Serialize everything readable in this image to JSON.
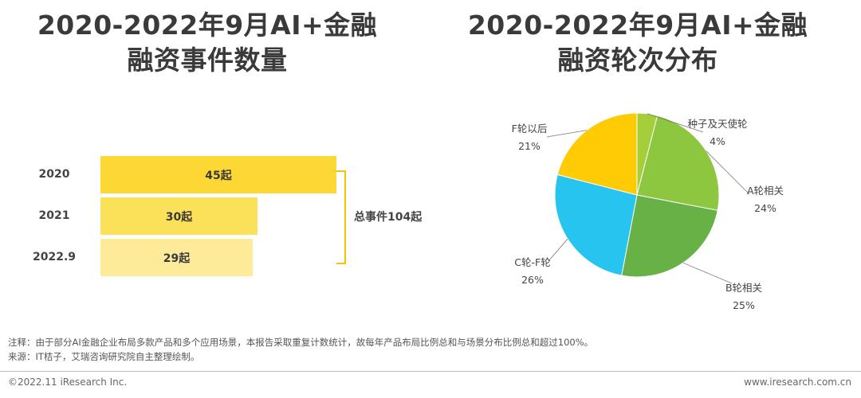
{
  "left_chart": {
    "title_line1": "2020-2022年9月AI+金融",
    "title_line2": "融资事件数量",
    "total_label": "总事件104起"
  },
  "right_chart": {
    "title_line1": "2020-2022年9月AI+金融",
    "title_line2": "融资轮次分布"
  },
  "chart_data": [
    {
      "type": "bar",
      "orientation": "horizontal",
      "title": "2020-2022年9月AI+金融融资事件数量",
      "categories": [
        "2020",
        "2021",
        "2022.9"
      ],
      "values": [
        45,
        30,
        29
      ],
      "value_labels": [
        "45起",
        "30起",
        "29起"
      ],
      "colors": [
        "#fdd835",
        "#fbe05a",
        "#fdeb99"
      ],
      "annotation": "总事件104起"
    },
    {
      "type": "pie",
      "title": "2020-2022年9月AI+金融融资轮次分布",
      "slices": [
        {
          "name": "种子及天使轮",
          "label": "4%",
          "value": 4,
          "color": "#a5cf3a"
        },
        {
          "name": "A轮相关",
          "label": "24%",
          "value": 24,
          "color": "#8dc63f"
        },
        {
          "name": "B轮相关",
          "label": "25%",
          "value": 25,
          "color": "#67b146"
        },
        {
          "name": "C轮-F轮",
          "label": "26%",
          "value": 26,
          "color": "#27c4ef"
        },
        {
          "name": "F轮以后",
          "label": "21%",
          "value": 21,
          "color": "#ffcb05"
        }
      ]
    }
  ],
  "notes": {
    "note": "注释：由于部分AI金融企业布局多款产品和多个应用场景，本报告采取重复计数统计，故每年产品布局比例总和与场景分布比例总和超过100%。",
    "source": "来源：IT桔子，艾瑞咨询研究院自主整理绘制。"
  },
  "footer": {
    "copyright": "©2022.11 iResearch Inc.",
    "website": "www.iresearch.com.cn"
  }
}
